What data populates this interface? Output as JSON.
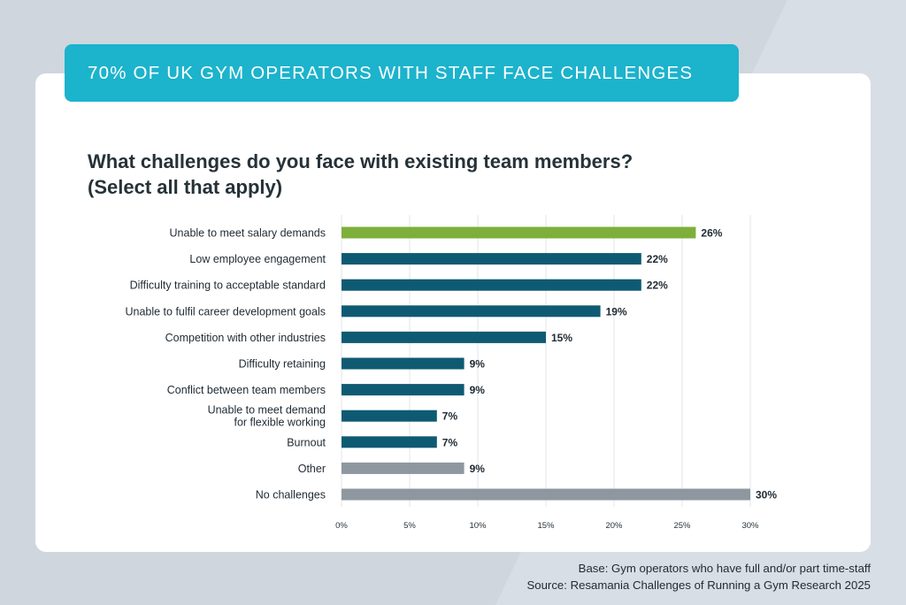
{
  "banner": {
    "title": "70% OF UK GYM OPERATORS WITH STAFF FACE CHALLENGES"
  },
  "question": {
    "line1": "What challenges do you face with existing team members?",
    "line2": "(Select all that apply)"
  },
  "colors": {
    "banner": "#1cb3cc",
    "highlight": "#7daf3a",
    "primary": "#0f5a73",
    "neutral": "#8e979f"
  },
  "chart_data": {
    "type": "bar",
    "orientation": "horizontal",
    "categories": [
      [
        "Unable to meet salary demands"
      ],
      [
        "Low employee engagement"
      ],
      [
        "Difficulty training to acceptable standard"
      ],
      [
        "Unable to fulfil career development goals"
      ],
      [
        "Competition with other industries"
      ],
      [
        "Difficulty retaining"
      ],
      [
        "Conflict between team members"
      ],
      [
        "Unable to meet demand",
        "for flexible working"
      ],
      [
        "Burnout"
      ],
      [
        "Other"
      ],
      [
        "No challenges"
      ]
    ],
    "values": [
      26,
      22,
      22,
      19,
      15,
      9,
      9,
      7,
      7,
      9,
      30
    ],
    "value_labels": [
      "26%",
      "22%",
      "22%",
      "19%",
      "15%",
      "9%",
      "9%",
      "7%",
      "7%",
      "9%",
      "30%"
    ],
    "bar_color_groups": [
      "highlight",
      "primary",
      "primary",
      "primary",
      "primary",
      "primary",
      "primary",
      "primary",
      "primary",
      "neutral",
      "neutral"
    ],
    "x_ticks": [
      0,
      5,
      10,
      15,
      20,
      25,
      30
    ],
    "x_tick_labels": [
      "0%",
      "5%",
      "10%",
      "15%",
      "20%",
      "25%",
      "30%"
    ],
    "xlim": [
      0,
      30
    ],
    "grid": true
  },
  "footer": {
    "base": "Base: Gym operators who have full and/or part time-staff",
    "source": "Source: Resamania Challenges of Running a Gym Research 2025"
  }
}
